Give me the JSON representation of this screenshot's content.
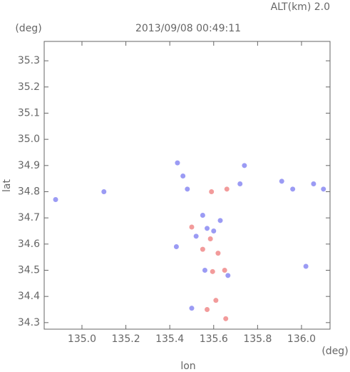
{
  "chart_data": {
    "type": "scatter",
    "title": "2013/09/08 00:49:11",
    "subtitle": "ALT(km) 2.0",
    "y_unit": "(deg)",
    "x_unit": "(deg)",
    "x_label": "lon",
    "y_label": "lat",
    "xlim": [
      134.828,
      136.13
    ],
    "ylim": [
      34.275,
      35.374
    ],
    "xticks": [
      {
        "value": 135,
        "label": "135.0"
      },
      135.2,
      135.4,
      135.6,
      135.8,
      {
        "value": 136,
        "label": "136.0"
      }
    ],
    "yticks": [
      34.3,
      34.4,
      34.5,
      34.6,
      34.7,
      34.8,
      34.9,
      {
        "value": 35,
        "label": "35.0"
      },
      35.1,
      35.2,
      35.3
    ],
    "series": [
      {
        "color": "#8a8af2",
        "x": [
          134.88,
          135.1,
          135.435,
          135.46,
          135.48,
          135.55,
          135.57,
          135.6,
          135.52,
          135.43,
          135.63,
          135.72,
          135.74,
          135.91,
          135.96,
          136.055,
          136.1,
          136.02,
          135.56,
          135.665,
          135.5
        ],
        "y": [
          34.77,
          34.8,
          34.91,
          34.86,
          34.81,
          34.71,
          34.66,
          34.65,
          34.63,
          34.59,
          34.69,
          34.83,
          34.9,
          34.84,
          34.81,
          34.83,
          34.81,
          34.515,
          34.5,
          34.48,
          34.355
        ]
      },
      {
        "color": "#f08a8a",
        "x": [
          135.59,
          135.66,
          135.5,
          135.585,
          135.55,
          135.62,
          135.595,
          135.65,
          135.61,
          135.655,
          135.57
        ],
        "y": [
          34.8,
          34.81,
          34.665,
          34.62,
          34.58,
          34.565,
          34.495,
          34.5,
          34.385,
          34.315,
          34.35
        ]
      }
    ]
  }
}
